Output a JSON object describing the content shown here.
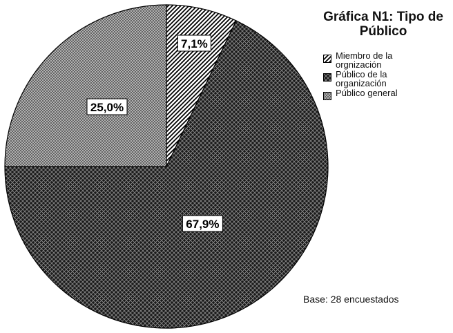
{
  "chart_data": {
    "type": "pie",
    "title": "Gráfica N1: Tipo de Público",
    "slices": [
      {
        "name": "Miembro de la\norgnización",
        "value": 7.1,
        "label": "7,1%",
        "pattern": "diag"
      },
      {
        "name": "Público de la\norganización",
        "value": 67.9,
        "label": "67,9%",
        "pattern": "dark"
      },
      {
        "name": "Público general",
        "value": 25.0,
        "label": "25,0%",
        "pattern": "light"
      }
    ],
    "legend_position": "top-right",
    "footnote": "Base: 28 encuestados"
  }
}
